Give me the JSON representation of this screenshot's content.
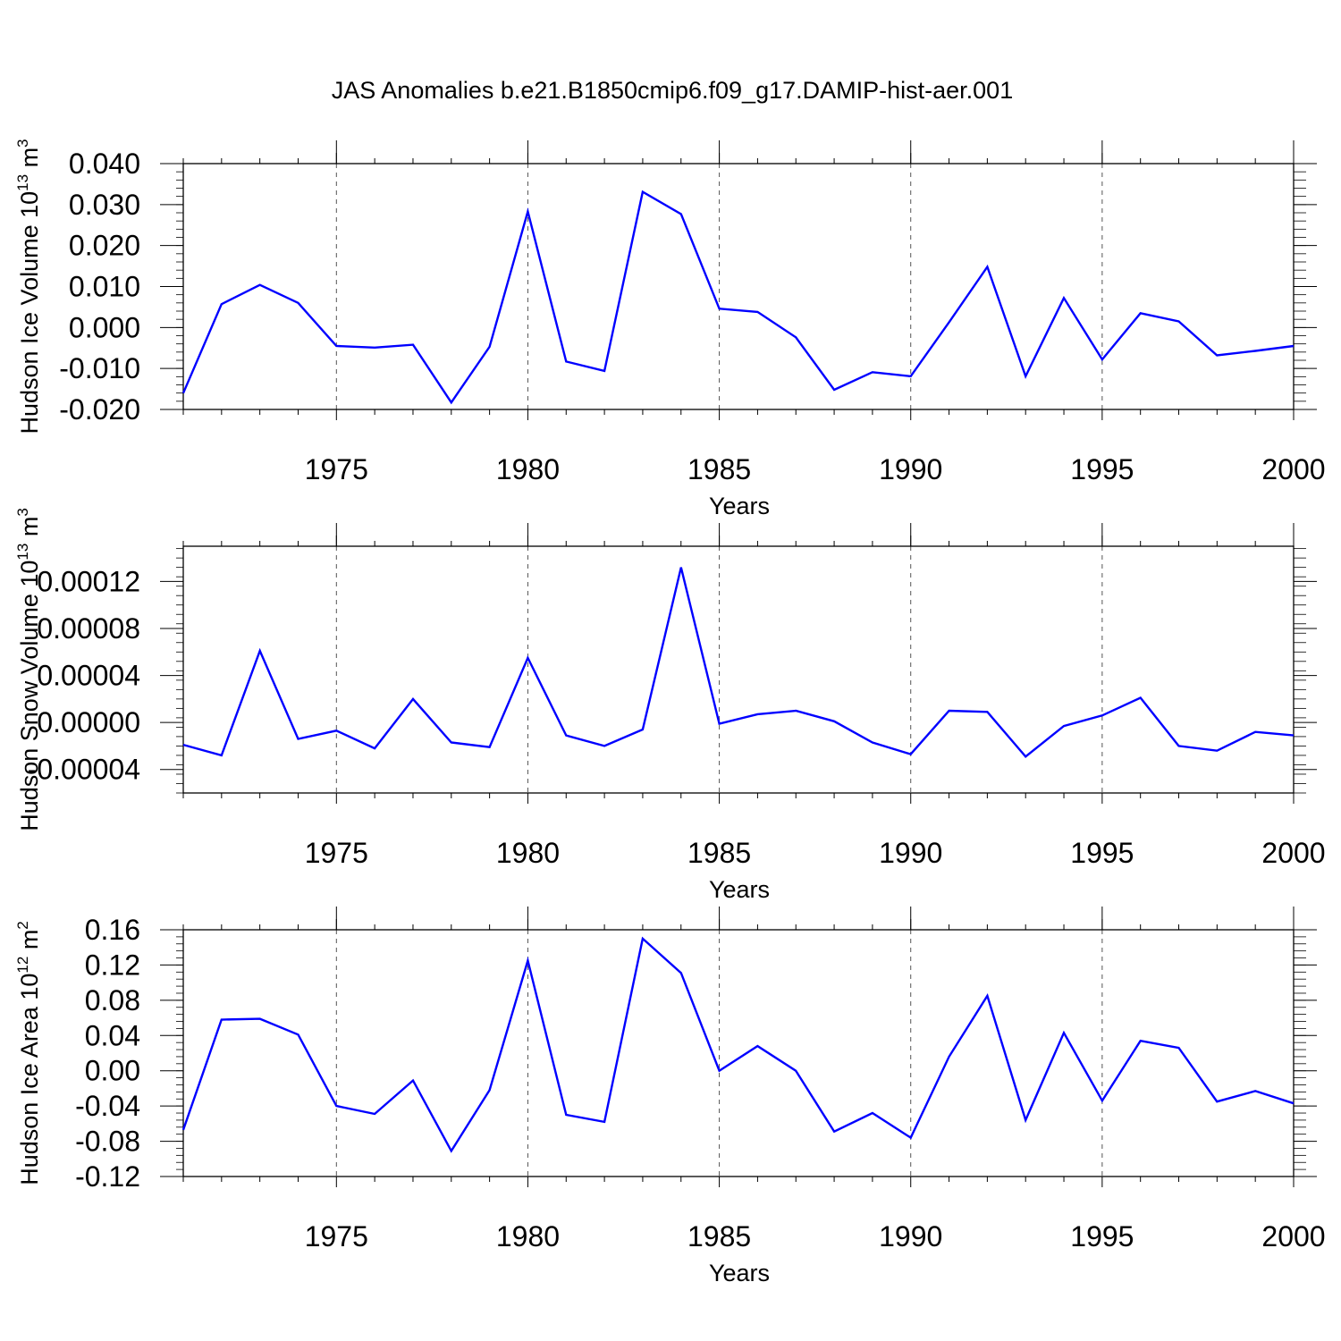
{
  "title": "JAS Anomalies b.e21.B1850cmip6.f09_g17.DAMIP-hist-aer.001",
  "colors": {
    "line": "#0000ff",
    "axis": "#000000",
    "grid": "#555555",
    "background": "#ffffff"
  },
  "chart_data": [
    {
      "type": "line",
      "title": "",
      "xlabel": "Years",
      "ylabel": {
        "base": "Hudson Ice Volume 10",
        "exp": "13",
        "unit": " m",
        "unit_exp": "3"
      },
      "xlim": [
        1971,
        2000
      ],
      "ylim": [
        -0.02,
        0.04
      ],
      "yticks": [
        -0.02,
        -0.01,
        0.0,
        0.01,
        0.02,
        0.03,
        0.04
      ],
      "ytick_labels": [
        "-0.020",
        "-0.010",
        "0.000",
        "0.010",
        "0.020",
        "0.030",
        "0.040"
      ],
      "xticks": [
        1975,
        1980,
        1985,
        1990,
        1995,
        2000
      ],
      "xtick_labels": [
        "1975",
        "1980",
        "1985",
        "1990",
        "1995",
        "2000"
      ],
      "grid": "vertical dashed at labeled years",
      "series": [
        {
          "name": "Hudson Ice Volume anomaly",
          "x": [
            1971,
            1972,
            1973,
            1974,
            1975,
            1976,
            1977,
            1978,
            1979,
            1980,
            1981,
            1982,
            1983,
            1984,
            1985,
            1986,
            1987,
            1988,
            1989,
            1990,
            1991,
            1992,
            1993,
            1994,
            1995,
            1996,
            1997,
            1998,
            1999,
            2000
          ],
          "values": [
            -0.016,
            0.0057,
            0.0104,
            0.006,
            -0.0045,
            -0.0049,
            -0.0042,
            -0.0183,
            -0.0047,
            0.0283,
            -0.0083,
            -0.0106,
            0.0331,
            0.0277,
            0.0046,
            0.0038,
            -0.0024,
            -0.0152,
            -0.0109,
            -0.0119,
            0.0013,
            0.0148,
            -0.0119,
            0.0072,
            -0.0078,
            0.0035,
            0.0015,
            -0.0068,
            -0.0057,
            -0.0045
          ]
        }
      ]
    },
    {
      "type": "line",
      "title": "",
      "xlabel": "Years",
      "ylabel": {
        "base": "Hudson Snow Volume 10",
        "exp": "13",
        "unit": " m",
        "unit_exp": "3"
      },
      "xlim": [
        1971,
        2000
      ],
      "ylim": [
        -6e-05,
        0.00015
      ],
      "yticks": [
        -4e-05,
        0.0,
        4e-05,
        8e-05,
        0.00012
      ],
      "ytick_labels": [
        "-0.00004",
        "0.00000",
        "0.00004",
        "0.00008",
        "0.00012"
      ],
      "xticks": [
        1975,
        1980,
        1985,
        1990,
        1995,
        2000
      ],
      "xtick_labels": [
        "1975",
        "1980",
        "1985",
        "1990",
        "1995",
        "2000"
      ],
      "grid": "vertical dashed at labeled years",
      "series": [
        {
          "name": "Hudson Snow Volume anomaly",
          "x": [
            1971,
            1972,
            1973,
            1974,
            1975,
            1976,
            1977,
            1978,
            1979,
            1980,
            1981,
            1982,
            1983,
            1984,
            1985,
            1986,
            1987,
            1988,
            1989,
            1990,
            1991,
            1992,
            1993,
            1994,
            1995,
            1996,
            1997,
            1998,
            1999,
            2000
          ],
          "values": [
            -1.9e-05,
            -2.8e-05,
            6.1e-05,
            -1.4e-05,
            -7e-06,
            -2.2e-05,
            2e-05,
            -1.7e-05,
            -2.1e-05,
            5.5e-05,
            -1.1e-05,
            -2e-05,
            -6e-06,
            0.000132,
            -1e-06,
            7e-06,
            1e-05,
            1e-06,
            -1.7e-05,
            -2.7e-05,
            1e-05,
            9e-06,
            -2.9e-05,
            -3e-06,
            6e-06,
            2.1e-05,
            -2e-05,
            -2.4e-05,
            -8e-06,
            -1.1e-05
          ]
        }
      ]
    },
    {
      "type": "line",
      "title": "",
      "xlabel": "Years",
      "ylabel": {
        "base": "Hudson Ice Area 10",
        "exp": "12",
        "unit": " m",
        "unit_exp": "2"
      },
      "xlim": [
        1971,
        2000
      ],
      "ylim": [
        -0.12,
        0.16
      ],
      "yticks": [
        -0.12,
        -0.08,
        -0.04,
        0.0,
        0.04,
        0.08,
        0.12,
        0.16
      ],
      "ytick_labels": [
        "-0.12",
        "-0.08",
        "-0.04",
        "0.00",
        "0.04",
        "0.08",
        "0.12",
        "0.16"
      ],
      "xticks": [
        1975,
        1980,
        1985,
        1990,
        1995,
        2000
      ],
      "xtick_labels": [
        "1975",
        "1980",
        "1985",
        "1990",
        "1995",
        "2000"
      ],
      "grid": "vertical dashed at labeled years",
      "series": [
        {
          "name": "Hudson Ice Area anomaly",
          "x": [
            1971,
            1972,
            1973,
            1974,
            1975,
            1976,
            1977,
            1978,
            1979,
            1980,
            1981,
            1982,
            1983,
            1984,
            1985,
            1986,
            1987,
            1988,
            1989,
            1990,
            1991,
            1992,
            1993,
            1994,
            1995,
            1996,
            1997,
            1998,
            1999,
            2000
          ],
          "values": [
            -0.067,
            0.058,
            0.059,
            0.041,
            -0.04,
            -0.049,
            -0.011,
            -0.091,
            -0.022,
            0.125,
            -0.05,
            -0.058,
            0.15,
            0.111,
            0.0,
            0.028,
            0.0,
            -0.069,
            -0.048,
            -0.076,
            0.016,
            0.085,
            -0.056,
            0.043,
            -0.034,
            0.034,
            0.026,
            -0.035,
            -0.023,
            -0.037
          ]
        }
      ]
    }
  ]
}
